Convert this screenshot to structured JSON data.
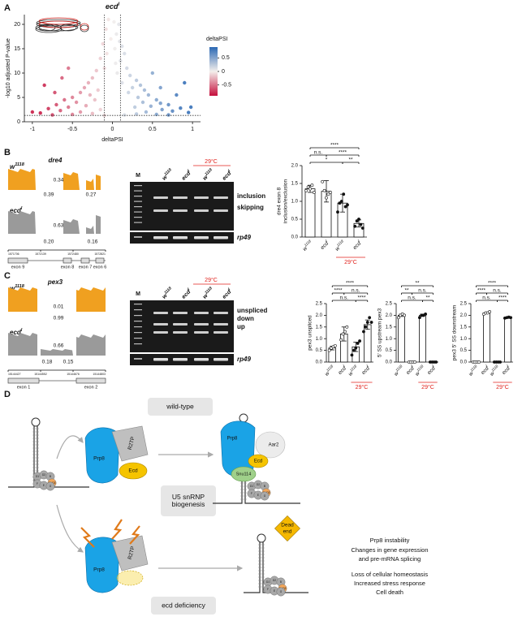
{
  "panel_labels": {
    "a": "A",
    "b": "B",
    "c": "C",
    "d": "D"
  },
  "chart_data": [
    {
      "type": "scatter",
      "title": {
        "name": "ecd",
        "sup": "l"
      },
      "x_label": "deltaPSI",
      "y_label": "-log10  adjusted P-value",
      "x": [
        -0.05,
        0.02,
        0.08,
        -0.08,
        0.05,
        -0.02,
        0.09,
        -0.12,
        0.12,
        0.03,
        -0.07,
        0.15,
        -0.15,
        0.1,
        0.04,
        -0.1,
        0.18,
        -0.2,
        0.06,
        0.22,
        -0.25,
        0.3,
        -0.3,
        0.12,
        0.35,
        -0.35,
        0.25,
        -0.18,
        0.4,
        -0.4,
        0.2,
        -0.28,
        0.45,
        -0.5,
        0.32,
        -0.6,
        0.55,
        -0.22,
        0.38,
        -0.45,
        0.6,
        -0.7,
        0.7,
        -0.33,
        0.48,
        -0.55,
        0.28,
        -0.8,
        0.85,
        -0.15,
        0.62,
        -0.65,
        0.75,
        -0.4,
        0.42,
        -0.9,
        0.95,
        -0.25,
        0.3,
        -0.5,
        0.55,
        -0.75,
        0.7,
        0.15,
        -0.1,
        -0.85,
        0.9,
        -0.63,
        0.6,
        0.8,
        -0.72,
        0.98,
        -1.0,
        0.5,
        -0.55
      ],
      "values": [
        21,
        20.5,
        20,
        19,
        18,
        17,
        16.5,
        16,
        15.5,
        15,
        14,
        14,
        13,
        12.5,
        12,
        11,
        11,
        10.5,
        10,
        9.5,
        9,
        8.5,
        8,
        8,
        7.5,
        7,
        7,
        6.5,
        6.5,
        6,
        6,
        5.5,
        5.5,
        5,
        5,
        4.5,
        4.5,
        4.5,
        4,
        4,
        3.8,
        3.5,
        3.5,
        3.3,
        3.2,
        3,
        3,
        2.7,
        2.8,
        2.5,
        2.5,
        2.3,
        2.2,
        2,
        2,
        1.8,
        1.9,
        1.7,
        1.6,
        1.5,
        1.5,
        1.4,
        1.4,
        1.4,
        1.3,
        7.5,
        8,
        9,
        7,
        5.5,
        6,
        3,
        2,
        10,
        11
      ],
      "xlim": [
        -1.1,
        1.1
      ],
      "xticks": [
        -1,
        -0.5,
        0,
        0.5,
        1
      ],
      "ylim": [
        0,
        22
      ],
      "yticks": [
        0,
        5,
        10,
        15,
        20
      ],
      "thresholds": {
        "x": [
          -0.1,
          0.1
        ],
        "y": 1.3
      },
      "colorbar": {
        "title": "deltaPSI",
        "lim": [
          -0.9,
          0.9
        ],
        "ticks": [
          0.5,
          0,
          -0.5
        ],
        "colors": [
          "#c50f3c",
          "#f4efec",
          "#2b68b4"
        ]
      }
    },
    {
      "type": "bar",
      "y_label": [
        "dre4 exon 8",
        "inclusion/exclusion"
      ],
      "categories": [
        {
          "name": "w",
          "sup": "1118"
        },
        {
          "name": "ecd",
          "sup": "l"
        },
        {
          "name": "w",
          "sup": "1118"
        },
        {
          "name": "ecd",
          "sup": "l"
        }
      ],
      "values": [
        1.35,
        1.28,
        0.95,
        0.38
      ],
      "errors": [
        0.1,
        0.3,
        0.25,
        0.1
      ],
      "points": [
        [
          1.3,
          1.4,
          1.35,
          1.45,
          1.25
        ],
        [
          1.55,
          1.3,
          1.1,
          1.2,
          1.25
        ],
        [
          0.7,
          0.95,
          1.0,
          1.2,
          0.85,
          0.9
        ],
        [
          0.3,
          0.45,
          0.5,
          0.35,
          0.25
        ]
      ],
      "ylim": [
        0,
        2
      ],
      "yticks": [
        {
          "value": 0,
          "label": "0.0"
        },
        {
          "value": 0.5,
          "label": "0.5"
        },
        {
          "value": 1,
          "label": "1.0"
        },
        {
          "value": 1.5,
          "label": "1.5"
        },
        {
          "value": 2,
          "label": "2.0"
        }
      ],
      "condition": "29°C",
      "condition_color": "#e0201b",
      "significance": [
        {
          "pair": [
            0,
            3
          ],
          "label": "****"
        },
        {
          "pair": [
            0,
            1
          ],
          "label": "n.s."
        },
        {
          "pair": [
            1,
            3
          ],
          "label": "****"
        },
        {
          "pair": [
            0,
            2
          ],
          "label": "*"
        },
        {
          "pair": [
            2,
            3
          ],
          "label": "**"
        }
      ]
    },
    {
      "type": "bar",
      "y_label": [
        "pex3 unspliced"
      ],
      "categories": [
        {
          "name": "w",
          "sup": "1118"
        },
        {
          "name": "ecd",
          "sup": "l"
        },
        {
          "name": "w",
          "sup": "1118"
        },
        {
          "name": "ecd",
          "sup": "l"
        }
      ],
      "values": [
        0.6,
        1.2,
        0.65,
        1.6
      ],
      "errors": [
        0.08,
        0.3,
        0.2,
        0.2
      ],
      "points": [
        [
          0.5,
          0.6,
          0.65,
          0.7
        ],
        [
          0.95,
          1.2,
          1.3,
          1.5
        ],
        [
          0.3,
          0.5,
          0.6,
          0.8,
          0.9
        ],
        [
          1.3,
          1.5,
          1.7,
          1.9,
          1.7
        ]
      ],
      "ylim": [
        0,
        2.5
      ],
      "yticks": [
        {
          "value": 0,
          "label": "0.0"
        },
        {
          "value": 0.5,
          "label": "0.5"
        },
        {
          "value": 1,
          "label": "1.0"
        },
        {
          "value": 1.5,
          "label": "1.5"
        },
        {
          "value": 2,
          "label": "2.0"
        },
        {
          "value": 2.5,
          "label": "2.5"
        }
      ],
      "condition": "29°C",
      "condition_color": "#e0201b",
      "significance": [
        {
          "pair": [
            0,
            3
          ],
          "label": "****"
        },
        {
          "pair": [
            0,
            1
          ],
          "label": "****"
        },
        {
          "pair": [
            1,
            3
          ],
          "label": "n.s."
        },
        {
          "pair": [
            0,
            2
          ],
          "label": "n.s."
        },
        {
          "pair": [
            2,
            3
          ],
          "label": "****"
        }
      ]
    },
    {
      "type": "bar",
      "y_label": [
        "5' SS upstream pex3"
      ],
      "categories": [
        {
          "name": "w",
          "sup": "1118"
        },
        {
          "name": "ecd",
          "sup": "l"
        },
        {
          "name": "w",
          "sup": "1118"
        },
        {
          "name": "ecd",
          "sup": "l"
        }
      ],
      "values": [
        2.0,
        0,
        2.0,
        0
      ],
      "errors": [
        0.05,
        0,
        0.05,
        0
      ],
      "points": [
        [
          1.9,
          2.0,
          2.05,
          2.0
        ],
        [
          0,
          0,
          0,
          0
        ],
        [
          1.9,
          2.0,
          2.0,
          2.05
        ],
        [
          0,
          0,
          0,
          0
        ]
      ],
      "ylim": [
        0,
        2.5
      ],
      "yticks": [
        {
          "value": 0,
          "label": "0.0"
        },
        {
          "value": 0.5,
          "label": "0.5"
        },
        {
          "value": 1,
          "label": "1.0"
        },
        {
          "value": 1.5,
          "label": "1.5"
        },
        {
          "value": 2,
          "label": "2.0"
        },
        {
          "value": 2.5,
          "label": "2.5"
        }
      ],
      "condition": "29°C",
      "condition_color": "#e0201b",
      "significance": [
        {
          "pair": [
            0,
            3
          ],
          "label": "**"
        },
        {
          "pair": [
            0,
            1
          ],
          "label": "**"
        },
        {
          "pair": [
            1,
            3
          ],
          "label": "n.s."
        },
        {
          "pair": [
            0,
            2
          ],
          "label": "n.s."
        },
        {
          "pair": [
            2,
            3
          ],
          "label": "**"
        }
      ]
    },
    {
      "type": "bar",
      "y_label": [
        "pex3 5' SS downstream"
      ],
      "categories": [
        {
          "name": "w",
          "sup": "1118"
        },
        {
          "name": "ecd",
          "sup": "l"
        },
        {
          "name": "w",
          "sup": "1118"
        },
        {
          "name": "ecd",
          "sup": "l"
        }
      ],
      "values": [
        0,
        2.1,
        0,
        1.9
      ],
      "errors": [
        0,
        0.03,
        0,
        0.03
      ],
      "points": [
        [
          0,
          0,
          0,
          0
        ],
        [
          2.05,
          2.1,
          2.1,
          2.15
        ],
        [
          0,
          0,
          0,
          0
        ],
        [
          1.88,
          1.9,
          1.92,
          1.9
        ]
      ],
      "ylim": [
        0,
        2.5
      ],
      "yticks": [
        {
          "value": 0,
          "label": "0.0"
        },
        {
          "value": 0.5,
          "label": "0.5"
        },
        {
          "value": 1,
          "label": "1.0"
        },
        {
          "value": 1.5,
          "label": "1.5"
        },
        {
          "value": 2,
          "label": "2.0"
        },
        {
          "value": 2.5,
          "label": "2.5"
        }
      ],
      "condition": "29°C",
      "condition_color": "#e0201b",
      "significance": [
        {
          "pair": [
            0,
            3
          ],
          "label": "****"
        },
        {
          "pair": [
            0,
            1
          ],
          "label": "****"
        },
        {
          "pair": [
            1,
            3
          ],
          "label": "n.s."
        },
        {
          "pair": [
            0,
            2
          ],
          "label": "n.s."
        },
        {
          "pair": [
            2,
            3
          ],
          "label": "****"
        }
      ]
    }
  ],
  "sashimi_b": {
    "gene": "dre4",
    "tracks": [
      {
        "genotype": {
          "name": "w",
          "sup": "1118"
        },
        "junctions": [
          "0.34",
          "0.39",
          "0.27"
        ]
      },
      {
        "genotype": {
          "name": "ecd",
          "sup": "l"
        },
        "junctions": [
          "0.63",
          "0.20",
          "0.16"
        ]
      }
    ],
    "coordinates": [
      "1571706",
      "1572139",
      "1572480",
      "1572821"
    ],
    "exons": [
      "exon 9",
      "exon 8",
      "exon 7",
      "exon 6"
    ]
  },
  "sashimi_c": {
    "gene": "pex3",
    "tracks": [
      {
        "genotype": {
          "name": "w",
          "sup": "1118"
        },
        "junctions": [
          "0.01",
          "0.99"
        ]
      },
      {
        "genotype": {
          "name": "ecd",
          "sup": "l"
        },
        "junctions": [
          "0.66",
          "0.18",
          "0.15"
        ]
      }
    ],
    "coordinates": [
      "15144427",
      "15144552",
      "15144676",
      "15144803"
    ],
    "exons": [
      "exon 1",
      "exon 2"
    ]
  },
  "gel_b": {
    "marker": "M",
    "lanes": [
      {
        "name": "w",
        "sup": "1118"
      },
      {
        "name": "ecd",
        "sup": "l"
      },
      {
        "name": "w",
        "sup": "1118"
      },
      {
        "name": "ecd",
        "sup": "l"
      }
    ],
    "condition": "29°C",
    "bands": [
      "inclusion",
      "skipping",
      "rp49"
    ]
  },
  "gel_c": {
    "marker": "M",
    "lanes": [
      {
        "name": "w",
        "sup": "1118"
      },
      {
        "name": "ecd",
        "sup": "l"
      },
      {
        "name": "w",
        "sup": "1118"
      },
      {
        "name": "ecd",
        "sup": "l"
      }
    ],
    "condition": "29°C",
    "bands": [
      "unspliced",
      "down",
      "up",
      "rp49"
    ]
  },
  "diagram": {
    "wild_type": "wild-type",
    "center": [
      "U5 snRNP",
      "biogenesis"
    ],
    "deficiency": "ecd deficiency",
    "prp8": "Prp8",
    "r2tp": "R2TP",
    "ecd": "Ecd",
    "aar2": "Aar2",
    "snu114": "Snu114",
    "sm_ring": [
      "D1",
      "D2",
      "B",
      "SmD3",
      "F",
      "E",
      "G"
    ],
    "dead_end": [
      "Dead",
      "end"
    ],
    "outcomes": [
      "Prp8 instability",
      "Changes in gene expression",
      "and pre-mRNA splicing",
      "Loss of cellular homeostasis",
      "Increased stress response",
      "Cell death"
    ]
  }
}
